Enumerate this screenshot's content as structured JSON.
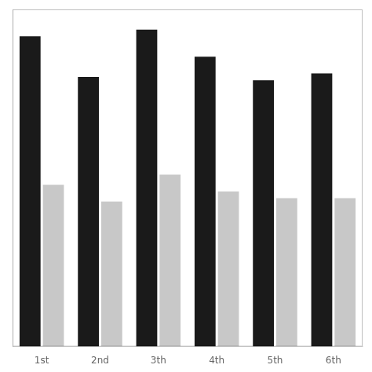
{
  "chart_data": {
    "type": "bar",
    "categories": [
      "1st",
      "2nd",
      "3th",
      "4th",
      "5th",
      "6th"
    ],
    "series": [
      {
        "color": "#1a1a1a",
        "values": [
          0.92,
          0.8,
          0.94,
          0.86,
          0.79,
          0.81
        ]
      },
      {
        "color": "#c8c8c8",
        "values": [
          0.48,
          0.43,
          0.51,
          0.46,
          0.44,
          0.44
        ]
      }
    ],
    "ylim": [
      0,
      1.0
    ],
    "yticks": [],
    "grid": false,
    "tick_labels": "x"
  }
}
